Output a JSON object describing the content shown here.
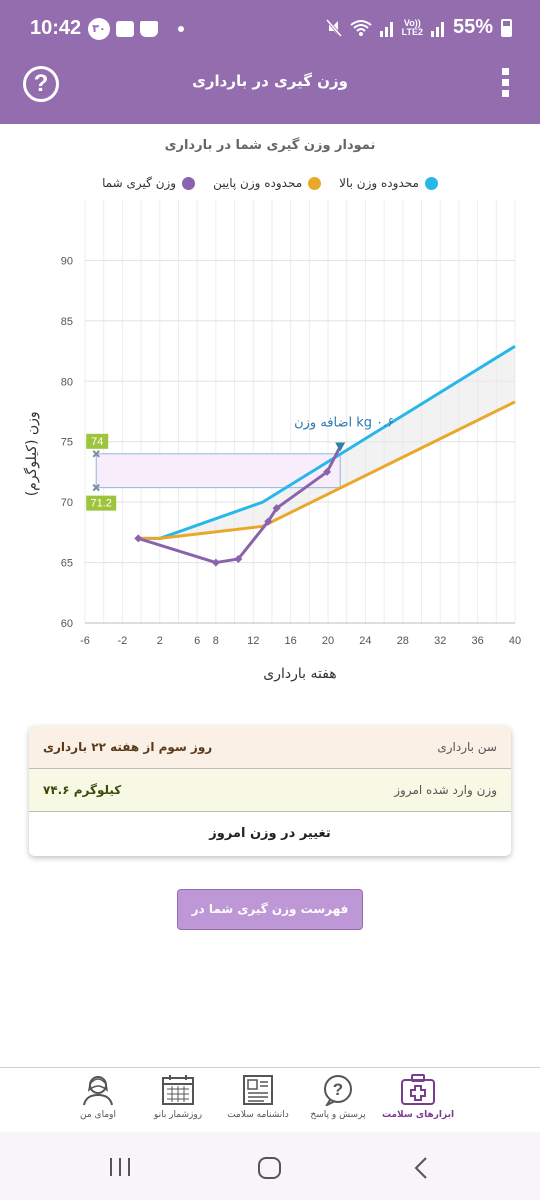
{
  "status_bar": {
    "time": "10:42",
    "notification_badge": "۳۰",
    "battery": "55%",
    "network_label_top": "Vo))",
    "network_label_bottom": "LTE2"
  },
  "app_bar": {
    "title": "وزن گیری در بارداری",
    "help_icon": "help-icon",
    "menu_icon": "more-vertical-icon",
    "help_glyph": "?"
  },
  "chart_data": {
    "type": "line",
    "title": "نمودار وزن گیری شما در بارداری",
    "xlabel": "هفته بارداری",
    "ylabel": "وزن (کیلوگرم)",
    "xlim": [
      -6,
      40
    ],
    "ylim": [
      60,
      90
    ],
    "x_ticks": [
      -6,
      -2,
      2,
      6,
      8,
      12,
      16,
      20,
      24,
      28,
      32,
      36,
      40
    ],
    "y_ticks": [
      60,
      65,
      70,
      75,
      80,
      85,
      90
    ],
    "grid": true,
    "legend_position": "top",
    "series": [
      {
        "name": "محدوده وزن بالا",
        "color": "#29b6e8",
        "points": [
          [
            0,
            67
          ],
          [
            2,
            67
          ],
          [
            13,
            70
          ],
          [
            40,
            82.9
          ]
        ]
      },
      {
        "name": "محدوده وزن پایین",
        "color": "#e8a92b",
        "points": [
          [
            0,
            67
          ],
          [
            2,
            67
          ],
          [
            13,
            68
          ],
          [
            40,
            78.3
          ]
        ]
      },
      {
        "name": "وزن گیری شما",
        "color": "#8b63ad",
        "points": [
          [
            -0.3,
            67
          ],
          [
            8,
            65
          ],
          [
            10.4,
            65.3
          ],
          [
            13.6,
            68.4
          ],
          [
            14.5,
            69.5
          ],
          [
            19.9,
            72.5
          ],
          [
            21.3,
            74.6
          ]
        ]
      }
    ],
    "band": {
      "low": 71.2,
      "high": 74
    },
    "start_marker_x": -4.8,
    "annotations": {
      "high_label": "74",
      "low_label": "71.2",
      "gain_label": "اضافه وزن kg ۰.۶"
    }
  },
  "info": {
    "row1_label": "سن بارداری",
    "row1_value": "روز سوم از هفته ۲۲ بارداری",
    "row2_label": "وزن وارد شده امروز",
    "row2_value": "۷۴.۶ کیلوگرم",
    "row3_text": "تغییر در وزن امروز"
  },
  "list_button": "فهرست وزن گیری شما در بارداری",
  "bottom_nav": [
    {
      "label": "ابزارهای سلامت",
      "icon": "medical-kit-icon",
      "active": true
    },
    {
      "label": "پرسش و پاسخ",
      "icon": "question-bubble-icon",
      "active": false
    },
    {
      "label": "دانشنامه سلامت",
      "icon": "encyclopedia-icon",
      "active": false
    },
    {
      "label": "روزشمار بانو",
      "icon": "calendar-icon",
      "active": false
    },
    {
      "label": "اومای من",
      "icon": "profile-icon",
      "active": false
    }
  ],
  "colors": {
    "primary": "#946daf",
    "upper_range": "#29b6e8",
    "lower_range": "#e8a92b",
    "user_weight": "#8b63ad",
    "label_green": "#9dc43a"
  }
}
